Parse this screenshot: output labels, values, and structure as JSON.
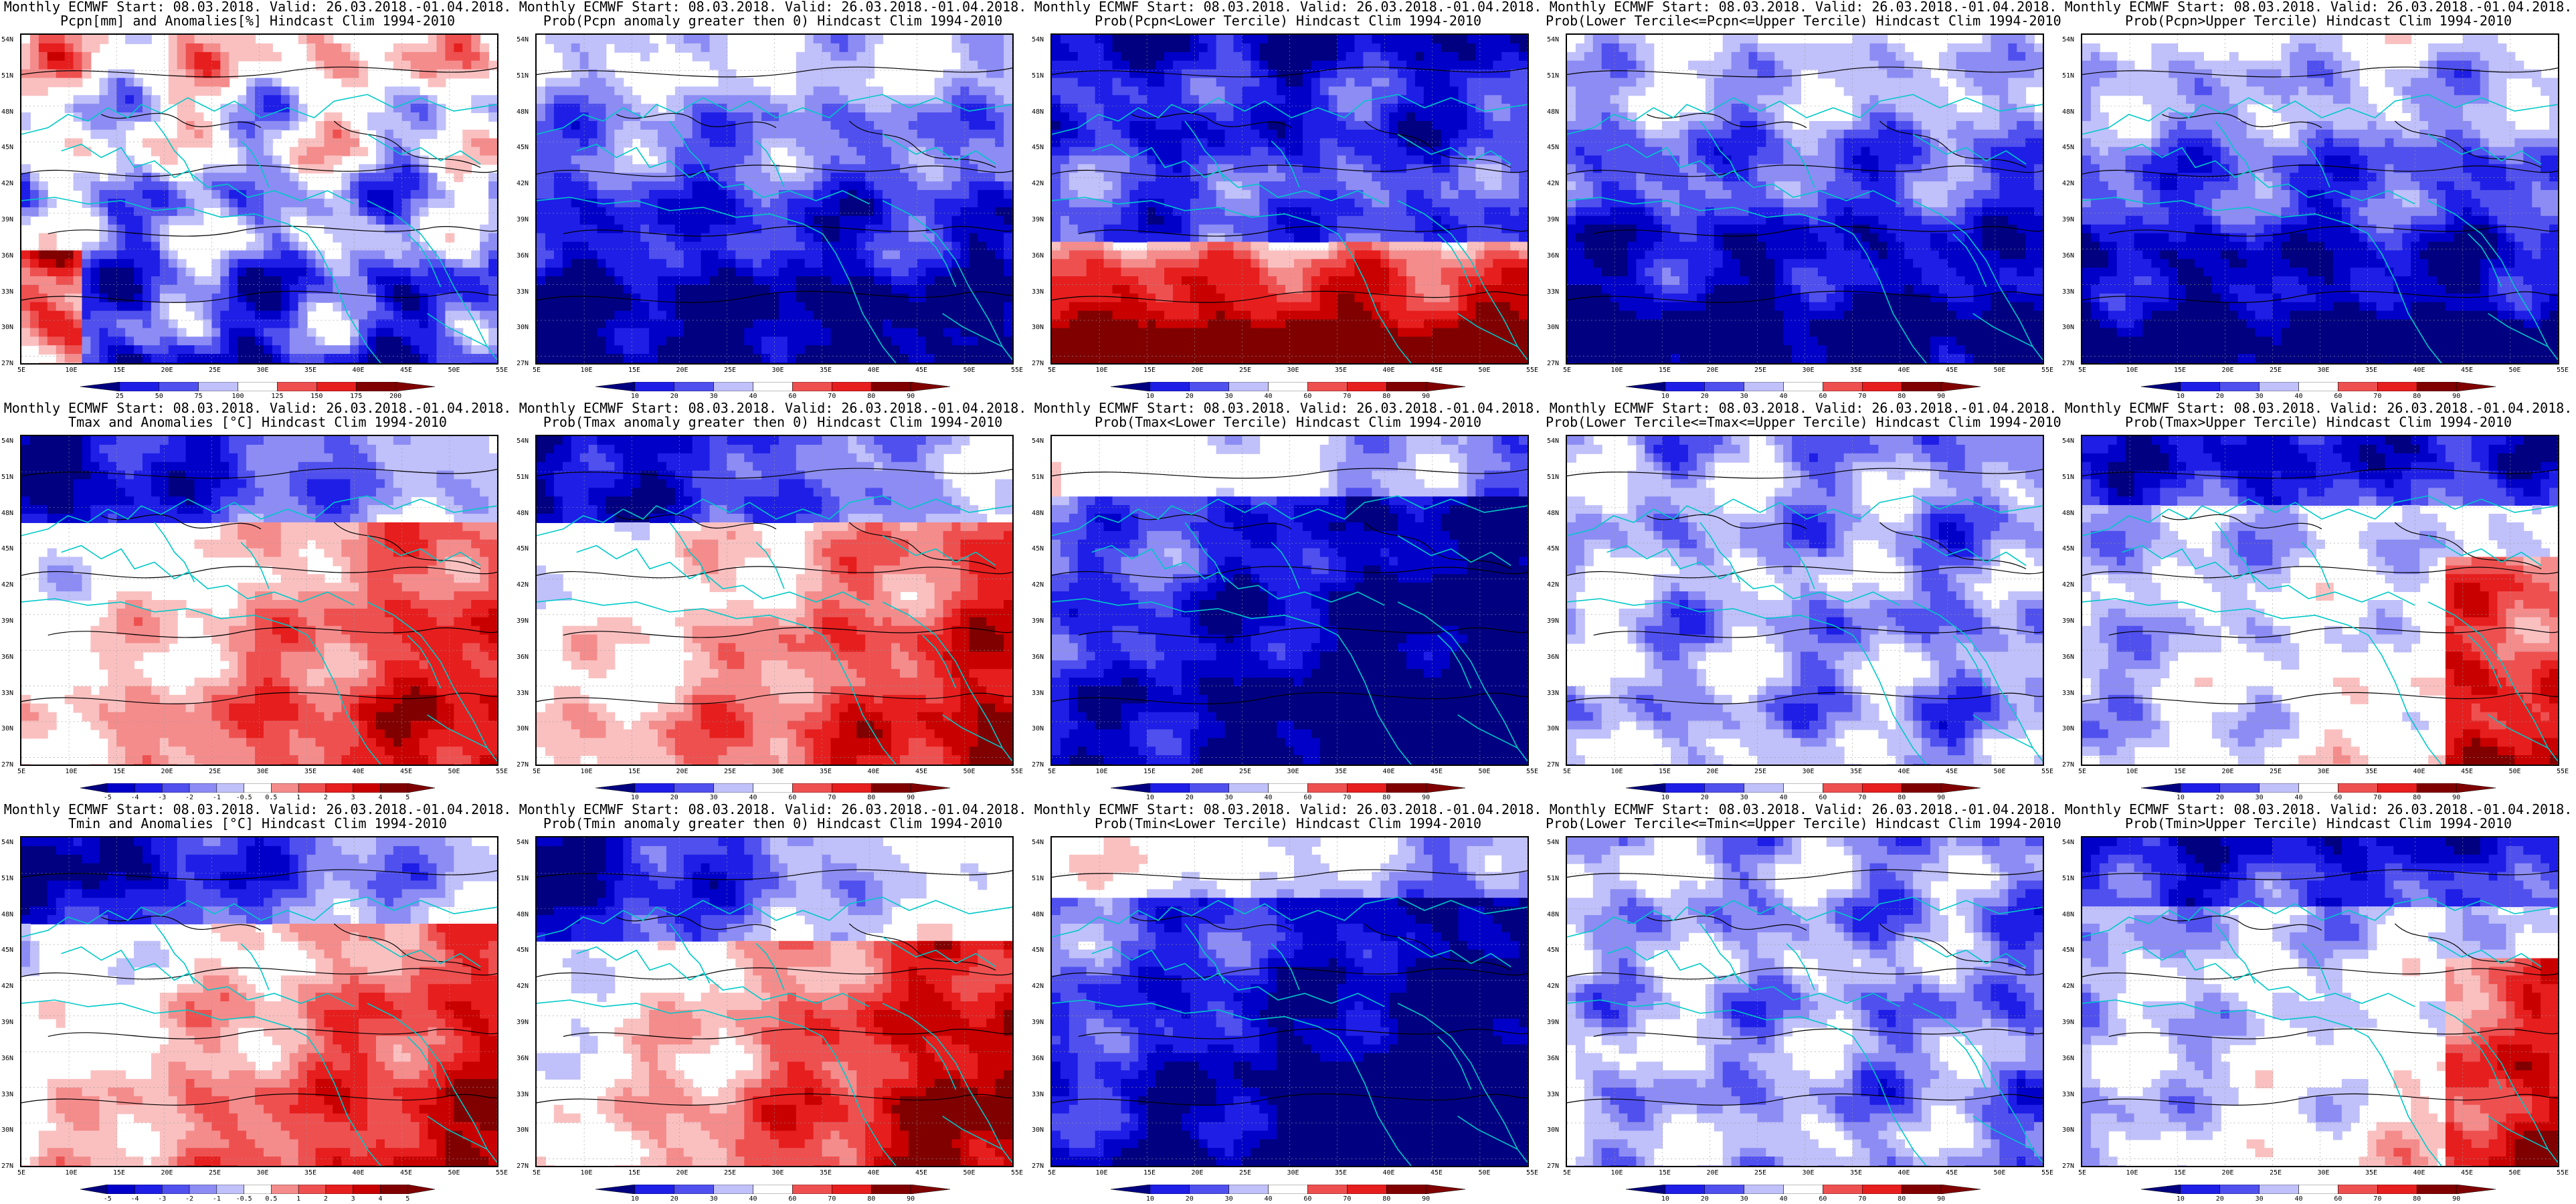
{
  "lat_labels": [
    "54N",
    "51N",
    "48N",
    "45N",
    "42N",
    "39N",
    "36N",
    "33N",
    "30N",
    "27N"
  ],
  "lon_labels": [
    "5E",
    "10E",
    "15E",
    "20E",
    "25E",
    "30E",
    "35E",
    "40E",
    "45E",
    "50E",
    "55E"
  ],
  "colors": {
    "blue_scale": [
      "#000080",
      "#0000c8",
      "#1e1ee6",
      "#5050ee",
      "#8c8cf4",
      "#c0c0fa",
      "#ffffff"
    ],
    "red_scale": [
      "#ffffff",
      "#fac0c0",
      "#f48c8c",
      "#ee5050",
      "#e61e1e",
      "#c80000",
      "#800000"
    ],
    "coast": "#00c8c8",
    "contour": "#000000"
  },
  "panels": [
    {
      "title1": "Monthly ECMWF Start: 08.03.2018. Valid: 26.03.2018.-01.04.2018.",
      "title2": "Pcpn[mm] and Anomalies[%] Hindcast Clim 1994-2010",
      "scheme": "anom",
      "cbar": [
        "25",
        "50",
        "75",
        "100",
        "125",
        "150",
        "175",
        "200"
      ]
    },
    {
      "title1": "Monthly ECMWF Start: 08.03.2018. Valid: 26.03.2018.-01.04.2018.",
      "title2": "Prob(Pcpn anomaly greater then 0) Hindcast Clim 1994-2010",
      "scheme": "blue",
      "cbar": [
        "10",
        "20",
        "30",
        "40",
        "60",
        "70",
        "80",
        "90"
      ]
    },
    {
      "title1": "Monthly ECMWF Start: 08.03.2018. Valid: 26.03.2018.-01.04.2018.",
      "title2": "Prob(Pcpn<Lower Tercile) Hindcast Clim 1994-2010",
      "scheme": "redsouth",
      "cbar": [
        "10",
        "20",
        "30",
        "40",
        "60",
        "70",
        "80",
        "90"
      ]
    },
    {
      "title1": "Monthly ECMWF Start: 08.03.2018. Valid: 26.03.2018.-01.04.2018.",
      "title2": "Prob(Lower Tercile<=Pcpn<=Upper Tercile) Hindcast Clim 1994-2010",
      "scheme": "blue",
      "cbar": [
        "10",
        "20",
        "30",
        "40",
        "60",
        "70",
        "80",
        "90"
      ]
    },
    {
      "title1": "Monthly ECMWF Start: 08.03.2018. Valid: 26.03.2018.-01.04.2018.",
      "title2": "Prob(Pcpn>Upper Tercile) Hindcast Clim 1994-2010",
      "scheme": "blue",
      "cbar": [
        "10",
        "20",
        "30",
        "40",
        "60",
        "70",
        "80",
        "90"
      ]
    },
    {
      "title1": "Monthly ECMWF Start: 08.03.2018. Valid: 26.03.2018.-01.04.2018.",
      "title2": "Tmax and Anomalies [°C] Hindcast Clim 1994-2010",
      "scheme": "warm",
      "cbar": [
        "-5",
        "-4",
        "-3",
        "-2",
        "-1",
        "-0.5",
        "0.5",
        "1",
        "2",
        "3",
        "4",
        "5"
      ]
    },
    {
      "title1": "Monthly ECMWF Start: 08.03.2018. Valid: 26.03.2018.-01.04.2018.",
      "title2": "Prob(Tmax anomaly greater then 0) Hindcast Clim 1994-2010",
      "scheme": "warm",
      "cbar": [
        "10",
        "20",
        "30",
        "40",
        "60",
        "70",
        "80",
        "90"
      ]
    },
    {
      "title1": "Monthly ECMWF Start: 08.03.2018. Valid: 26.03.2018.-01.04.2018.",
      "title2": "Prob(Tmax<Lower Tercile) Hindcast Clim 1994-2010",
      "scheme": "deepblue",
      "cbar": [
        "10",
        "20",
        "30",
        "40",
        "60",
        "70",
        "80",
        "90"
      ]
    },
    {
      "title1": "Monthly ECMWF Start: 08.03.2018. Valid: 26.03.2018.-01.04.2018.",
      "title2": "Prob(Lower Tercile<=Tmax<=Upper Tercile) Hindcast Clim 1994-2010",
      "scheme": "lightblue",
      "cbar": [
        "10",
        "20",
        "30",
        "40",
        "60",
        "70",
        "80",
        "90"
      ]
    },
    {
      "title1": "Monthly ECMWF Start: 08.03.2018. Valid: 26.03.2018.-01.04.2018.",
      "title2": "Prob(Tmax>Upper Tercile) Hindcast Clim 1994-2010",
      "scheme": "mixed",
      "cbar": [
        "10",
        "20",
        "30",
        "40",
        "60",
        "70",
        "80",
        "90"
      ]
    },
    {
      "title1": "Monthly ECMWF Start: 08.03.2018. Valid: 26.03.2018.-01.04.2018.",
      "title2": "Tmin and Anomalies [°C] Hindcast Clim 1994-2010",
      "scheme": "warm",
      "cbar": [
        "-5",
        "-4",
        "-3",
        "-2",
        "-1",
        "-0.5",
        "0.5",
        "1",
        "2",
        "3",
        "4",
        "5"
      ]
    },
    {
      "title1": "Monthly ECMWF Start: 08.03.2018. Valid: 26.03.2018.-01.04.2018.",
      "title2": "Prob(Tmin anomaly greater then 0) Hindcast Clim 1994-2010",
      "scheme": "hot",
      "cbar": [
        "10",
        "20",
        "30",
        "40",
        "60",
        "70",
        "80",
        "90"
      ]
    },
    {
      "title1": "Monthly ECMWF Start: 08.03.2018. Valid: 26.03.2018.-01.04.2018.",
      "title2": "Prob(Tmin<Lower Tercile) Hindcast Clim 1994-2010",
      "scheme": "deepblue",
      "cbar": [
        "10",
        "20",
        "30",
        "40",
        "60",
        "70",
        "80",
        "90"
      ]
    },
    {
      "title1": "Monthly ECMWF Start: 08.03.2018. Valid: 26.03.2018.-01.04.2018.",
      "title2": "Prob(Lower Tercile<=Tmin<=Upper Tercile) Hindcast Clim 1994-2010",
      "scheme": "lightblue",
      "cbar": [
        "10",
        "20",
        "30",
        "40",
        "60",
        "70",
        "80",
        "90"
      ]
    },
    {
      "title1": "Monthly ECMWF Start: 08.03.2018. Valid: 26.03.2018.-01.04.2018.",
      "title2": "Prob(Tmin>Upper Tercile) Hindcast Clim 1994-2010",
      "scheme": "mixed",
      "cbar": [
        "10",
        "20",
        "30",
        "40",
        "60",
        "70",
        "80",
        "90"
      ]
    }
  ]
}
